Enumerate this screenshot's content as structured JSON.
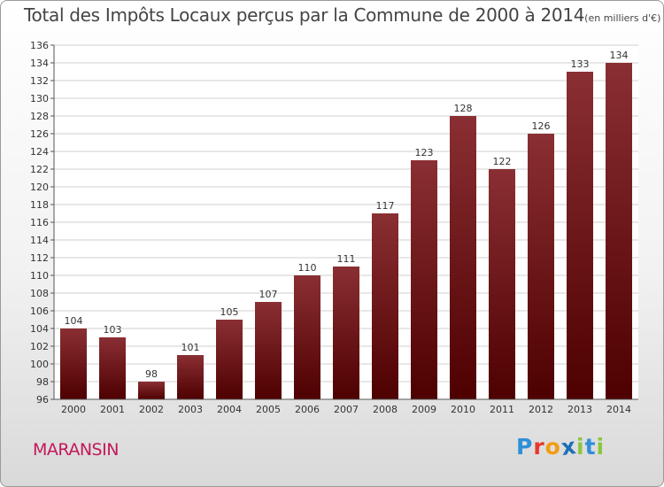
{
  "chart_data": {
    "type": "bar",
    "title": "Total des Impôts Locaux perçus par la Commune de 2000 à 2014",
    "unit_label": "(en milliers d'€)",
    "categories": [
      "2000",
      "2001",
      "2002",
      "2003",
      "2004",
      "2005",
      "2006",
      "2007",
      "2008",
      "2009",
      "2010",
      "2011",
      "2012",
      "2013",
      "2014"
    ],
    "values": [
      104,
      103,
      98,
      101,
      105,
      107,
      110,
      111,
      117,
      123,
      128,
      122,
      126,
      133,
      134
    ],
    "ylim": [
      96,
      136
    ],
    "yticks": [
      96,
      98,
      100,
      102,
      104,
      106,
      108,
      110,
      112,
      114,
      116,
      118,
      120,
      122,
      124,
      126,
      128,
      130,
      132,
      134,
      136
    ],
    "grid": true,
    "xlabel": "",
    "ylabel": ""
  },
  "commune_name": "MARANSIN",
  "logo": {
    "text": "Proxiti",
    "letters": [
      {
        "ch": "P",
        "color": "#2f8fd8"
      },
      {
        "ch": "r",
        "color": "#e8382b"
      },
      {
        "ch": "o",
        "color": "#f39c12"
      },
      {
        "ch": "x",
        "color": "#1e6fb8"
      },
      {
        "ch": "i",
        "color": "#8cc63f"
      },
      {
        "ch": "t",
        "color": "#2f8fd8"
      },
      {
        "ch": "i",
        "color": "#8cc63f"
      }
    ]
  },
  "colors": {
    "bar_top": "#8a2f33",
    "bar_bottom": "#4e0000",
    "grid": "#cfcfcf",
    "axis": "#555555",
    "commune": "#c2185b"
  }
}
